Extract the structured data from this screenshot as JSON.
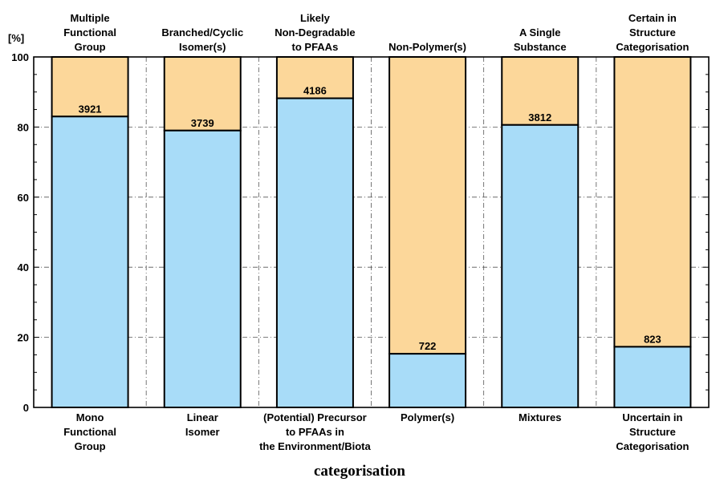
{
  "chart_data": {
    "type": "bar",
    "stacked": true,
    "percent": true,
    "ylabel": "[%]",
    "xlabel": "categorisation",
    "ylim": [
      0,
      100
    ],
    "yticks": [
      "0",
      "20",
      "40",
      "60",
      "80",
      "100"
    ],
    "grid": true,
    "bottom_labels": [
      [
        "Mono",
        "Functional",
        "Group"
      ],
      [
        "Linear",
        "Isomer"
      ],
      [
        "(Potential) Precursor",
        "to PFAAs in",
        "the Environment/Biota"
      ],
      [
        "Polymer(s)"
      ],
      [
        "Mixtures"
      ],
      [
        "Uncertain in",
        "Structure",
        "Categorisation"
      ]
    ],
    "top_labels": [
      [
        "Multiple",
        "Functional",
        "Group"
      ],
      [
        "Branched/Cyclic",
        "Isomer(s)"
      ],
      [
        "Likely",
        "Non-Degradable",
        "to PFAAs"
      ],
      [
        "Non-Polymer(s)"
      ],
      [
        "A Single",
        "Substance"
      ],
      [
        "Certain in",
        "Structure",
        "Categorisation"
      ]
    ],
    "bottom_percent": [
      83,
      79,
      88.2,
      15.3,
      80.6,
      17.3
    ],
    "counts": [
      "3921",
      "3739",
      "4186",
      "722",
      "3812",
      "823"
    ],
    "colors": {
      "bottom": "#a8dcf8",
      "top": "#fcd79a"
    }
  }
}
